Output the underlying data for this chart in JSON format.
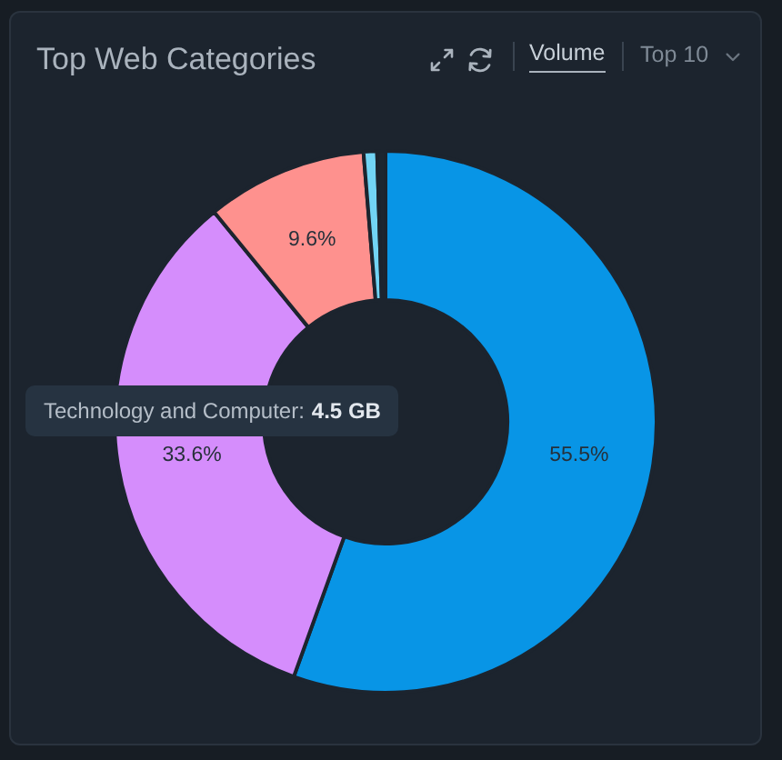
{
  "chart_data": {
    "type": "donut",
    "title": "Top Web Categories",
    "categories": [
      null,
      null,
      null,
      null,
      null
    ],
    "values": [
      55.5,
      33.6,
      9.6,
      0.8,
      0.5
    ],
    "colors": [
      "#0895e6",
      "#d58dfc",
      "#fe918e",
      "#72d4f5",
      "#1d2630"
    ],
    "value_labels": [
      "55.5%",
      "33.6%",
      "9.6%",
      null,
      null
    ],
    "annotations": [
      "Volume",
      "Top 10",
      "Technology and Computer: 4.5 GB"
    ]
  }
}
